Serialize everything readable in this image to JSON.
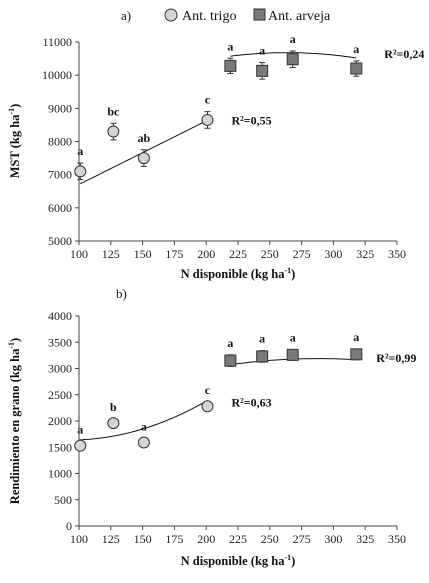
{
  "colors": {
    "trigo_fill": "#d4d4d4",
    "arveja_fill": "#7a7a7a",
    "stroke": "#333333",
    "axis": "#444444",
    "fit": "#111111"
  },
  "legend": {
    "position": "top",
    "items": [
      {
        "label": "Ant. trigo",
        "marker": "circle"
      },
      {
        "label": "Ant. arveja",
        "marker": "square"
      }
    ]
  },
  "chart_data": [
    {
      "panel_label": "a)",
      "type": "scatter",
      "xlabel": "N disponible (kg ha",
      "xlabel_sup": "-1",
      "xlabel_tail": ")",
      "ylabel": "MST (kg ha",
      "ylabel_sup": "-1",
      "ylabel_tail": ")",
      "xlim": [
        100,
        350
      ],
      "ylim": [
        5000,
        11000
      ],
      "xticks": [
        100,
        125,
        150,
        175,
        200,
        225,
        250,
        275,
        300,
        325,
        350
      ],
      "yticks": [
        5000,
        6000,
        7000,
        8000,
        9000,
        10000,
        11000
      ],
      "grid": false,
      "series": [
        {
          "name": "Ant. trigo",
          "marker": "circle",
          "points": [
            {
              "x": 101,
              "y": 7100,
              "err": 250,
              "letter": "a"
            },
            {
              "x": 127,
              "y": 8300,
              "err": 250,
              "letter": "bc"
            },
            {
              "x": 151,
              "y": 7500,
              "err": 250,
              "letter": "ab"
            },
            {
              "x": 201,
              "y": 8650,
              "err": 250,
              "letter": "c"
            }
          ],
          "fit": {
            "type": "linear",
            "x_range": [
              101,
              201
            ],
            "coef": [
              4790,
              19.15
            ],
            "r2_label": "R²=0,55"
          }
        },
        {
          "name": "Ant. arveja",
          "marker": "square",
          "points": [
            {
              "x": 219,
              "y": 10280,
              "err": 230,
              "letter": "a"
            },
            {
              "x": 244,
              "y": 10130,
              "err": 250,
              "letter": "a"
            },
            {
              "x": 268,
              "y": 10480,
              "err": 250,
              "letter": "a"
            },
            {
              "x": 318,
              "y": 10200,
              "err": 230,
              "letter": "a"
            }
          ],
          "fit": {
            "type": "quadratic",
            "x_range": [
              219,
              318
            ],
            "coef": [
              6950,
              28.3,
              -0.0537
            ],
            "r2_label": "R²=0,24"
          }
        }
      ]
    },
    {
      "panel_label": "b)",
      "type": "scatter",
      "xlabel": "N disponible (kg ha",
      "xlabel_sup": "-1",
      "xlabel_tail": ")",
      "ylabel": "Rendimiento en grano (kg ha",
      "ylabel_sup": "-1",
      "ylabel_tail": ")",
      "xlim": [
        100,
        350
      ],
      "ylim": [
        0,
        4000
      ],
      "xticks": [
        100,
        125,
        150,
        175,
        200,
        225,
        250,
        275,
        300,
        325,
        350
      ],
      "yticks": [
        0,
        500,
        1000,
        1500,
        2000,
        2500,
        3000,
        3500,
        4000
      ],
      "grid": false,
      "series": [
        {
          "name": "Ant. trigo",
          "marker": "circle",
          "points": [
            {
              "x": 101,
              "y": 1530,
              "err": 80,
              "letter": "a"
            },
            {
              "x": 127,
              "y": 1960,
              "err": 80,
              "letter": "b"
            },
            {
              "x": 151,
              "y": 1590,
              "err": 80,
              "letter": "a"
            },
            {
              "x": 201,
              "y": 2280,
              "err": 80,
              "letter": "c"
            }
          ],
          "fit": {
            "type": "quadratic",
            "x_range": [
              101,
              201
            ],
            "coef": [
              2210,
              -12.2,
              0.0652
            ],
            "r2_label": "R²=0,63"
          }
        },
        {
          "name": "Ant. arveja",
          "marker": "square",
          "points": [
            {
              "x": 219,
              "y": 3150,
              "err": 110,
              "letter": "a"
            },
            {
              "x": 244,
              "y": 3230,
              "err": 110,
              "letter": "a"
            },
            {
              "x": 268,
              "y": 3260,
              "err": 100,
              "letter": "a"
            },
            {
              "x": 318,
              "y": 3270,
              "err": 100,
              "letter": "a"
            }
          ],
          "fit": {
            "type": "quadratic",
            "x_range": [
              219,
              318
            ],
            "coef": [
              1160,
              14.1,
              -0.0245
            ],
            "r2_label": "R²=0,99"
          }
        }
      ]
    }
  ]
}
